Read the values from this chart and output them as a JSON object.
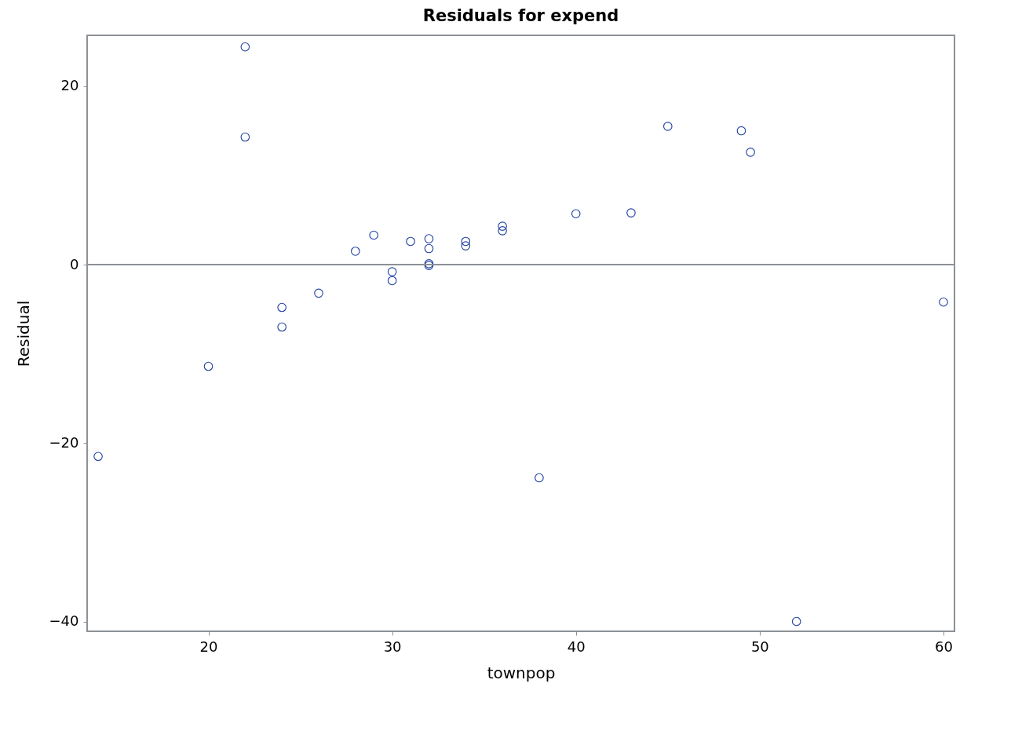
{
  "chart_data": {
    "type": "scatter",
    "title": "Residuals for expend",
    "xlabel": "townpop",
    "ylabel": "Residual",
    "x": [
      22,
      22,
      14,
      20,
      24,
      24,
      26,
      28,
      29,
      30,
      30,
      31,
      32,
      32,
      32,
      32,
      34,
      34,
      36,
      36,
      38,
      40,
      43,
      45,
      49,
      49.5,
      52,
      60
    ],
    "series": [
      {
        "color": "#1f3f9f",
        "values": [
          24.4,
          14.3,
          -21.5,
          -11.4,
          -4.8,
          -7.0,
          -3.2,
          1.5,
          3.3,
          -0.8,
          -1.8,
          2.6,
          2.9,
          1.8,
          0.1,
          -0.1,
          2.6,
          2.1,
          4.3,
          3.8,
          -23.9,
          5.7,
          5.8,
          15.5,
          15.0,
          12.6,
          -40,
          -4.2
        ]
      }
    ],
    "xlim": [
      13.4,
      60.6
    ],
    "ylim": [
      -41.1,
      25.7
    ],
    "xticks": [
      20,
      30,
      40,
      50,
      60
    ],
    "yticks": [
      -40,
      -20,
      0,
      20
    ],
    "ref_lines": [
      {
        "axis": "y",
        "value": 0,
        "color": "#8c9196"
      }
    ],
    "marker": "circle",
    "grid": false,
    "legend": false
  }
}
